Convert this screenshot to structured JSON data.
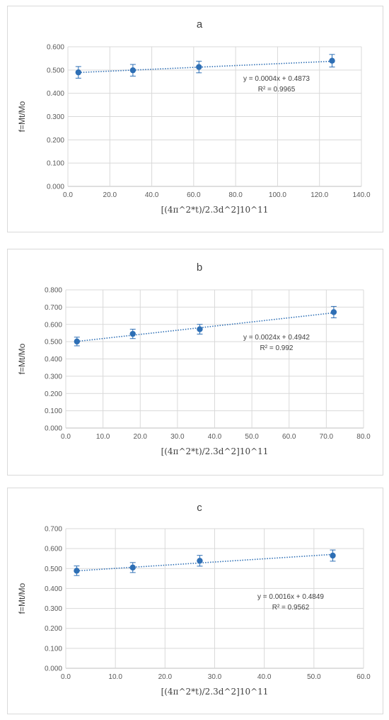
{
  "chart_data": [
    {
      "type": "scatter",
      "title": "a",
      "xlabel": "[(4π^2*t)/2.3d^2]10^11",
      "ylabel": "f=Mt/Mo",
      "xlim": [
        0,
        140
      ],
      "ylim": [
        0,
        0.6
      ],
      "xticks": [
        "0.0",
        "20.0",
        "40.0",
        "60.0",
        "80.0",
        "100.0",
        "120.0",
        "140.0"
      ],
      "yticks": [
        "0.000",
        "0.100",
        "0.200",
        "0.300",
        "0.400",
        "0.500",
        "0.600"
      ],
      "grid": true,
      "legend": "none",
      "color": "#2e6fb5",
      "points": [
        {
          "x": 5.0,
          "y": 0.49,
          "err": 0.025
        },
        {
          "x": 31.0,
          "y": 0.499,
          "err": 0.025
        },
        {
          "x": 62.5,
          "y": 0.513,
          "err": 0.025
        },
        {
          "x": 126.0,
          "y": 0.54,
          "err": 0.027
        }
      ],
      "trendline": {
        "slope": 0.0004,
        "intercept": 0.4873,
        "equation": "y = 0.0004x + 0.4873",
        "r2": "R² = 0.9965"
      }
    },
    {
      "type": "scatter",
      "title": "b",
      "xlabel": "[(4π^2*t)/2.3d^2]10^11",
      "ylabel": "f=Mt/Mo",
      "xlim": [
        0,
        80
      ],
      "ylim": [
        0,
        0.8
      ],
      "xticks": [
        "0.0",
        "10.0",
        "20.0",
        "30.0",
        "40.0",
        "50.0",
        "60.0",
        "70.0",
        "80.0"
      ],
      "yticks": [
        "0.000",
        "0.100",
        "0.200",
        "0.300",
        "0.400",
        "0.500",
        "0.600",
        "0.700",
        "0.800"
      ],
      "grid": true,
      "legend": "none",
      "color": "#2e6fb5",
      "points": [
        {
          "x": 3.0,
          "y": 0.501,
          "err": 0.025
        },
        {
          "x": 18.0,
          "y": 0.545,
          "err": 0.027
        },
        {
          "x": 36.0,
          "y": 0.572,
          "err": 0.028
        },
        {
          "x": 72.0,
          "y": 0.671,
          "err": 0.033
        }
      ],
      "trendline": {
        "slope": 0.0024,
        "intercept": 0.4942,
        "equation": "y = 0.0024x + 0.4942",
        "r2": "R² = 0.992"
      }
    },
    {
      "type": "scatter",
      "title": "c",
      "xlabel": "[(4π^2*t)/2.3d^2]10^11",
      "ylabel": "f=Mt/Mo",
      "xlim": [
        0,
        60
      ],
      "ylim": [
        0,
        0.7
      ],
      "xticks": [
        "0.0",
        "10.0",
        "20.0",
        "30.0",
        "40.0",
        "50.0",
        "60.0"
      ],
      "yticks": [
        "0.000",
        "0.100",
        "0.200",
        "0.300",
        "0.400",
        "0.500",
        "0.600",
        "0.700"
      ],
      "grid": true,
      "legend": "none",
      "color": "#2e6fb5",
      "points": [
        {
          "x": 2.2,
          "y": 0.489,
          "err": 0.024
        },
        {
          "x": 13.5,
          "y": 0.505,
          "err": 0.025
        },
        {
          "x": 27.0,
          "y": 0.539,
          "err": 0.027
        },
        {
          "x": 53.8,
          "y": 0.565,
          "err": 0.028
        }
      ],
      "trendline": {
        "slope": 0.0016,
        "intercept": 0.4849,
        "equation": "y = 0.0016x + 0.4849",
        "r2": "R² = 0.9562"
      }
    }
  ]
}
